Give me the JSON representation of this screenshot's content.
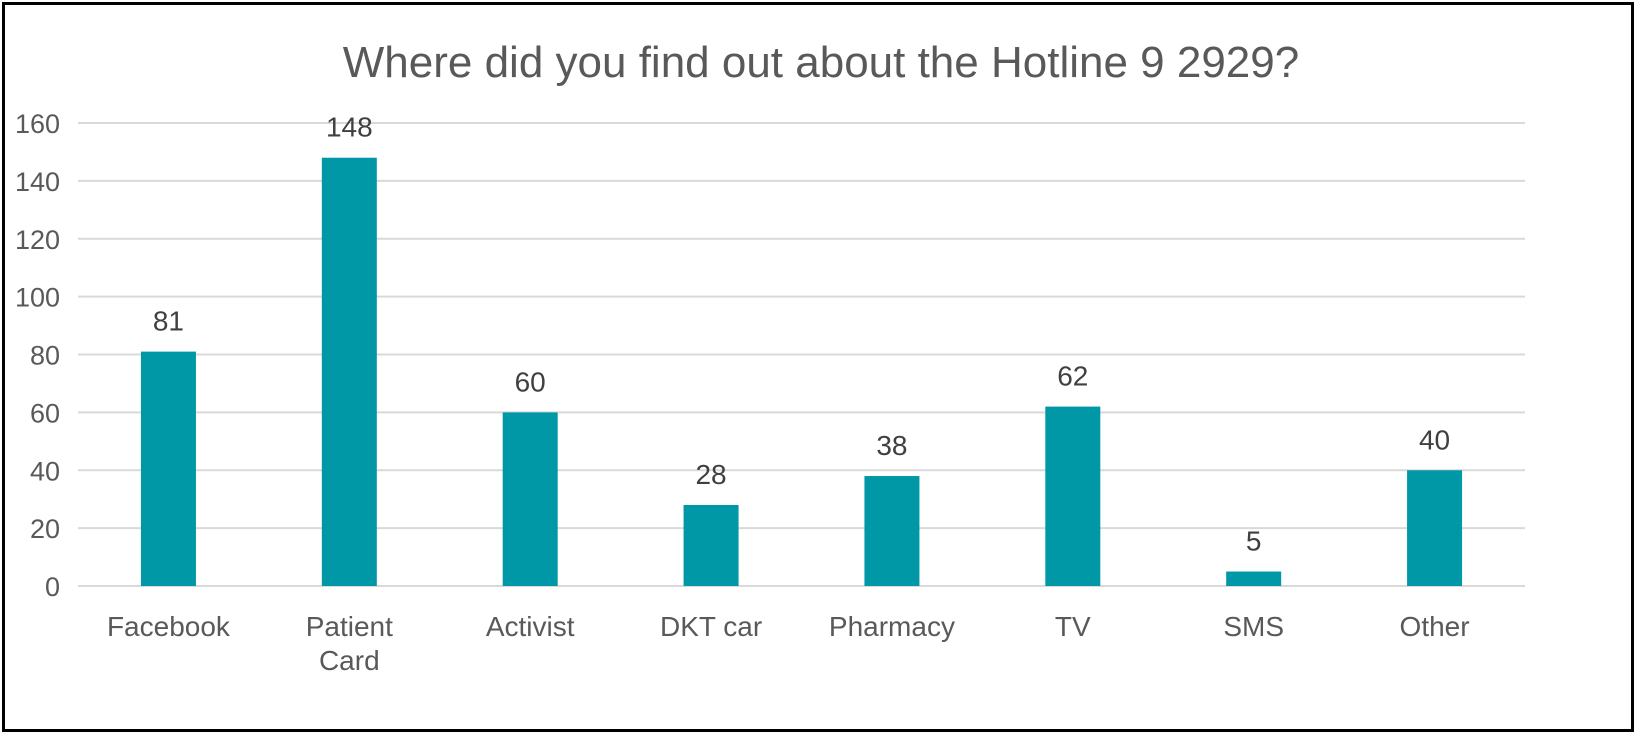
{
  "chart_data": {
    "type": "bar",
    "title": "Where did you find out about the Hotline 9 2929?",
    "categories": [
      [
        "Facebook"
      ],
      [
        "Patient",
        "Card"
      ],
      [
        "Activist"
      ],
      [
        "DKT car"
      ],
      [
        "Pharmacy"
      ],
      [
        "TV"
      ],
      [
        "SMS"
      ],
      [
        "Other"
      ]
    ],
    "values": [
      81,
      148,
      60,
      28,
      38,
      62,
      5,
      40
    ],
    "ylim": [
      0,
      160
    ],
    "yticks": [
      0,
      20,
      40,
      60,
      80,
      100,
      120,
      140,
      160
    ],
    "grid": true,
    "legend": "none",
    "bar_color": "#0097A7",
    "grid_color": "#D9D9D9",
    "text_color": "#595959"
  }
}
